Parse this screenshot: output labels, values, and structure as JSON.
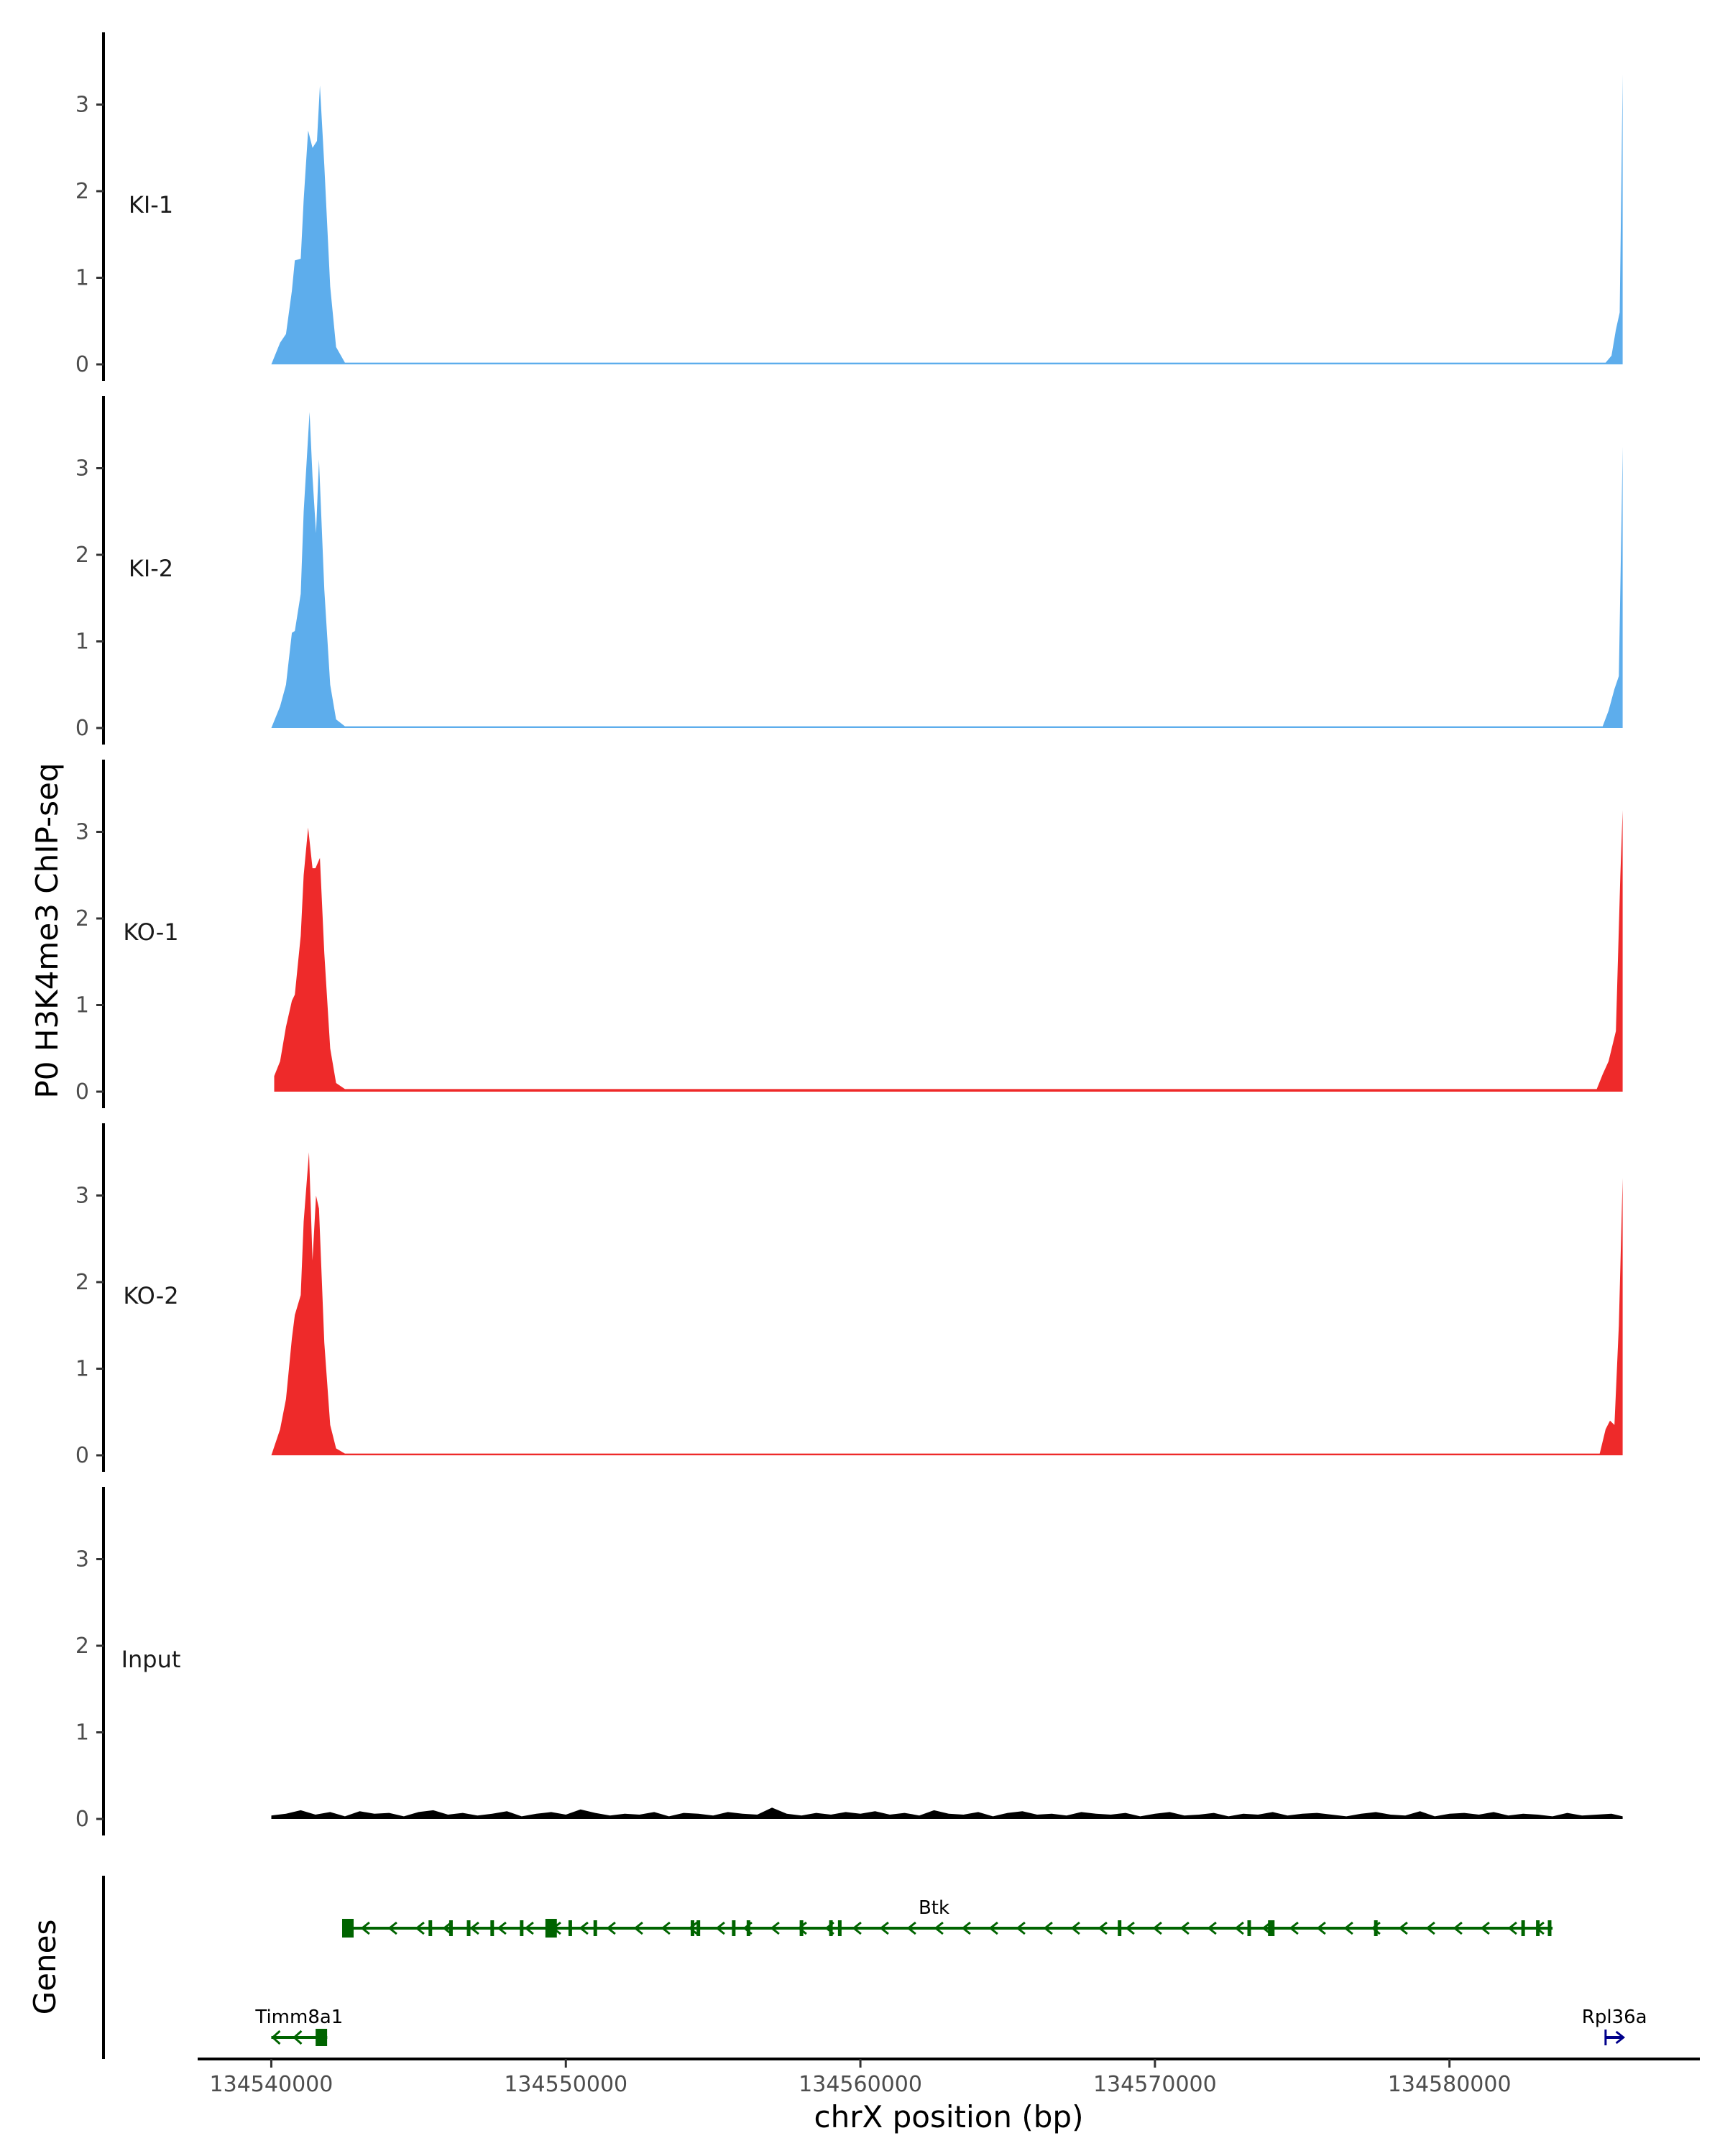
{
  "chart_data": {
    "type": "area",
    "ylabel": "P0 H3K4me3 ChIP-seq",
    "xlabel": "chrX position (bp)",
    "xlim": [
      134537500,
      134588500
    ],
    "ylim": [
      0,
      3.8
    ],
    "y_ticks": [
      0,
      1,
      2,
      3
    ],
    "x_ticks": [
      134540000,
      134550000,
      134560000,
      134570000,
      134580000
    ],
    "x_tick_labels": [
      "134540000",
      "134550000",
      "134560000",
      "134570000",
      "134580000"
    ],
    "tracks": [
      {
        "name": "KI-1",
        "color": "#5DADEC",
        "x": [
          134540000,
          134540300,
          134540500,
          134540700,
          134540800,
          134541000,
          134541100,
          134541250,
          134541400,
          134541550,
          134541650,
          134541800,
          134542000,
          134542200,
          134542500,
          134585300,
          134585500,
          134585650,
          134585780,
          134585850,
          134585880
        ],
        "y": [
          0,
          0.25,
          0.35,
          0.85,
          1.2,
          1.22,
          1.9,
          2.7,
          2.5,
          2.58,
          3.22,
          2.3,
          0.9,
          0.2,
          0.02,
          0.02,
          0.1,
          0.4,
          0.6,
          2.5,
          3.35
        ]
      },
      {
        "name": "KI-2",
        "color": "#5DADEC",
        "x": [
          134540000,
          134540300,
          134540500,
          134540700,
          134540800,
          134541000,
          134541100,
          134541300,
          134541400,
          134541520,
          134541620,
          134541800,
          134542000,
          134542200,
          134542500,
          134585200,
          134585400,
          134585600,
          134585750,
          134585850,
          134585880
        ],
        "y": [
          0,
          0.25,
          0.5,
          1.1,
          1.12,
          1.55,
          2.5,
          3.65,
          2.9,
          2.25,
          3.1,
          1.6,
          0.5,
          0.1,
          0.02,
          0.02,
          0.2,
          0.45,
          0.6,
          2.6,
          3.25
        ]
      },
      {
        "name": "KO-1",
        "color": "#EE2A2A",
        "x": [
          134540100,
          134540300,
          134540500,
          134540700,
          134540800,
          134541000,
          134541100,
          134541250,
          134541400,
          134541500,
          134541650,
          134541800,
          134542000,
          134542200,
          134542500,
          134585000,
          134585200,
          134585400,
          134585650,
          134585800,
          134585880
        ],
        "y": [
          0.18,
          0.35,
          0.75,
          1.05,
          1.12,
          1.8,
          2.5,
          3.05,
          2.58,
          2.58,
          2.7,
          1.6,
          0.5,
          0.1,
          0.03,
          0.03,
          0.2,
          0.35,
          0.7,
          2.5,
          3.25
        ]
      },
      {
        "name": "KO-2",
        "color": "#EE2A2A",
        "x": [
          134540000,
          134540300,
          134540500,
          134540700,
          134540800,
          134541000,
          134541100,
          134541280,
          134541400,
          134541520,
          134541620,
          134541800,
          134542000,
          134542200,
          134542500,
          134585100,
          134585300,
          134585450,
          134585600,
          134585750,
          134585880
        ],
        "y": [
          0,
          0.3,
          0.65,
          1.35,
          1.62,
          1.85,
          2.7,
          3.5,
          2.25,
          3.0,
          2.85,
          1.3,
          0.35,
          0.08,
          0.02,
          0.02,
          0.3,
          0.4,
          0.35,
          1.5,
          3.2
        ]
      },
      {
        "name": "Input",
        "color": "#000000",
        "x": [
          134540000,
          134540500,
          134541000,
          134541500,
          134542000,
          134542500,
          134543000,
          134543500,
          134544000,
          134544500,
          134545000,
          134545500,
          134546000,
          134546500,
          134547000,
          134547500,
          134548000,
          134548500,
          134549000,
          134549500,
          134550000,
          134550500,
          134551000,
          134551500,
          134552000,
          134552500,
          134553000,
          134553500,
          134554000,
          134554500,
          134555000,
          134555500,
          134556000,
          134556500,
          134557000,
          134557500,
          134558000,
          134558500,
          134559000,
          134559500,
          134560000,
          134560500,
          134561000,
          134561500,
          134562000,
          134562500,
          134563000,
          134563500,
          134564000,
          134564500,
          134565000,
          134565500,
          134566000,
          134566500,
          134567000,
          134567500,
          134568000,
          134568500,
          134569000,
          134569500,
          134570000,
          134570500,
          134571000,
          134571500,
          134572000,
          134572500,
          134573000,
          134573500,
          134574000,
          134574500,
          134575000,
          134575500,
          134576000,
          134576500,
          134577000,
          134577500,
          134578000,
          134578500,
          134579000,
          134579500,
          134580000,
          134580500,
          134581000,
          134581500,
          134582000,
          134582500,
          134583000,
          134583500,
          134584000,
          134584500,
          134585000,
          134585500,
          134585880
        ],
        "y": [
          0.04,
          0.06,
          0.1,
          0.05,
          0.08,
          0.03,
          0.09,
          0.06,
          0.07,
          0.03,
          0.08,
          0.1,
          0.05,
          0.07,
          0.04,
          0.06,
          0.09,
          0.03,
          0.06,
          0.08,
          0.05,
          0.11,
          0.07,
          0.04,
          0.06,
          0.05,
          0.08,
          0.03,
          0.07,
          0.06,
          0.04,
          0.08,
          0.06,
          0.05,
          0.13,
          0.06,
          0.04,
          0.07,
          0.05,
          0.08,
          0.06,
          0.09,
          0.05,
          0.07,
          0.04,
          0.1,
          0.06,
          0.05,
          0.08,
          0.03,
          0.07,
          0.09,
          0.05,
          0.06,
          0.04,
          0.08,
          0.06,
          0.05,
          0.07,
          0.03,
          0.06,
          0.08,
          0.04,
          0.05,
          0.07,
          0.03,
          0.06,
          0.05,
          0.08,
          0.04,
          0.06,
          0.07,
          0.05,
          0.03,
          0.06,
          0.08,
          0.05,
          0.04,
          0.09,
          0.03,
          0.06,
          0.07,
          0.05,
          0.08,
          0.04,
          0.06,
          0.05,
          0.03,
          0.07,
          0.04,
          0.05,
          0.06,
          0.03
        ]
      }
    ],
    "genes_panel": {
      "label": "Genes",
      "genes": [
        {
          "name": "Btk",
          "start": 134542500,
          "end": 134583500,
          "strand": "-",
          "color": "#006400"
        },
        {
          "name": "Timm8a1",
          "start": 134540000,
          "end": 134541900,
          "strand": "-",
          "color": "#006400"
        },
        {
          "name": "Rpl36a",
          "start": 134585300,
          "end": 134585880,
          "strand": "+",
          "color": "#00008B"
        }
      ]
    }
  }
}
